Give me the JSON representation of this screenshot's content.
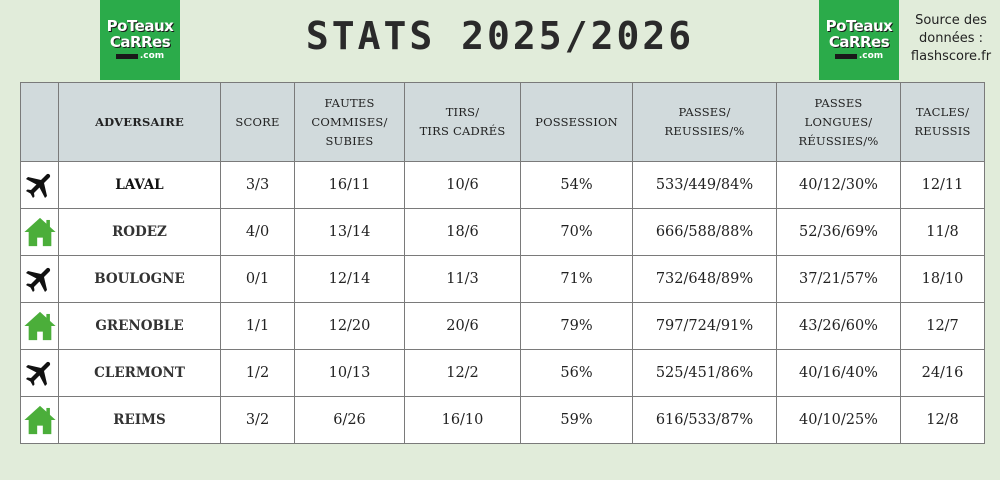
{
  "header": {
    "title": "STATS 2025/2026",
    "logo": {
      "line1": "PoTeaux",
      "line2": "CaRRes",
      "line3": ".com"
    },
    "source": {
      "line1": "Source des",
      "line2": "données :",
      "line3": "flashscore.fr"
    }
  },
  "colors": {
    "background": "#e1ecda",
    "header_row": "#d1dadc",
    "home_icon": "#4bae3a",
    "away_icon": "#111111",
    "logo": "#2bab4a"
  },
  "table": {
    "headers": {
      "adversaire": "ADVERSAIRE",
      "score": "SCORE",
      "fautes": [
        "FAUTES",
        "COMMISES/",
        "SUBIES"
      ],
      "tirs": [
        "TIRS/",
        "TIRS CADRÉS"
      ],
      "possession": "POSSESSION",
      "passes": [
        "PASSES/",
        "REUSSIES/%"
      ],
      "passes_longues": [
        "PASSES",
        "LONGUES/",
        "RÉUSSIES/%"
      ],
      "tacles": [
        "TACLES/",
        "REUSSIS"
      ]
    },
    "rows": [
      {
        "venue_icon": "plane-icon",
        "adversaire": "LAVAL",
        "score": "3/3",
        "fautes": "16/11",
        "tirs": "10/6",
        "possession": "54%",
        "passes": "533/449/84%",
        "passes_longues": "40/12/30%",
        "tacles": "12/11"
      },
      {
        "venue_icon": "home-icon",
        "adversaire": "RODEZ",
        "score": "4/0",
        "fautes": "13/14",
        "tirs": "18/6",
        "possession": "70%",
        "passes": "666/588/88%",
        "passes_longues": "52/36/69%",
        "tacles": "11/8"
      },
      {
        "venue_icon": "plane-icon",
        "adversaire": "BOULOGNE",
        "score": "0/1",
        "fautes": "12/14",
        "tirs": "11/3",
        "possession": "71%",
        "passes": "732/648/89%",
        "passes_longues": "37/21/57%",
        "tacles": "18/10"
      },
      {
        "venue_icon": "home-icon",
        "adversaire": "GRENOBLE",
        "score": "1/1",
        "fautes": "12/20",
        "tirs": "20/6",
        "possession": "79%",
        "passes": "797/724/91%",
        "passes_longues": "43/26/60%",
        "tacles": "12/7"
      },
      {
        "venue_icon": "plane-icon",
        "adversaire": "CLERMONT",
        "score": "1/2",
        "fautes": "10/13",
        "tirs": "12/2",
        "possession": "56%",
        "passes": "525/451/86%",
        "passes_longues": "40/16/40%",
        "tacles": "24/16"
      },
      {
        "venue_icon": "home-icon",
        "adversaire": "REIMS",
        "score": "3/2",
        "fautes": "6/26",
        "tirs": "16/10",
        "possession": "59%",
        "passes": "616/533/87%",
        "passes_longues": "40/10/25%",
        "tacles": "12/8"
      }
    ]
  }
}
